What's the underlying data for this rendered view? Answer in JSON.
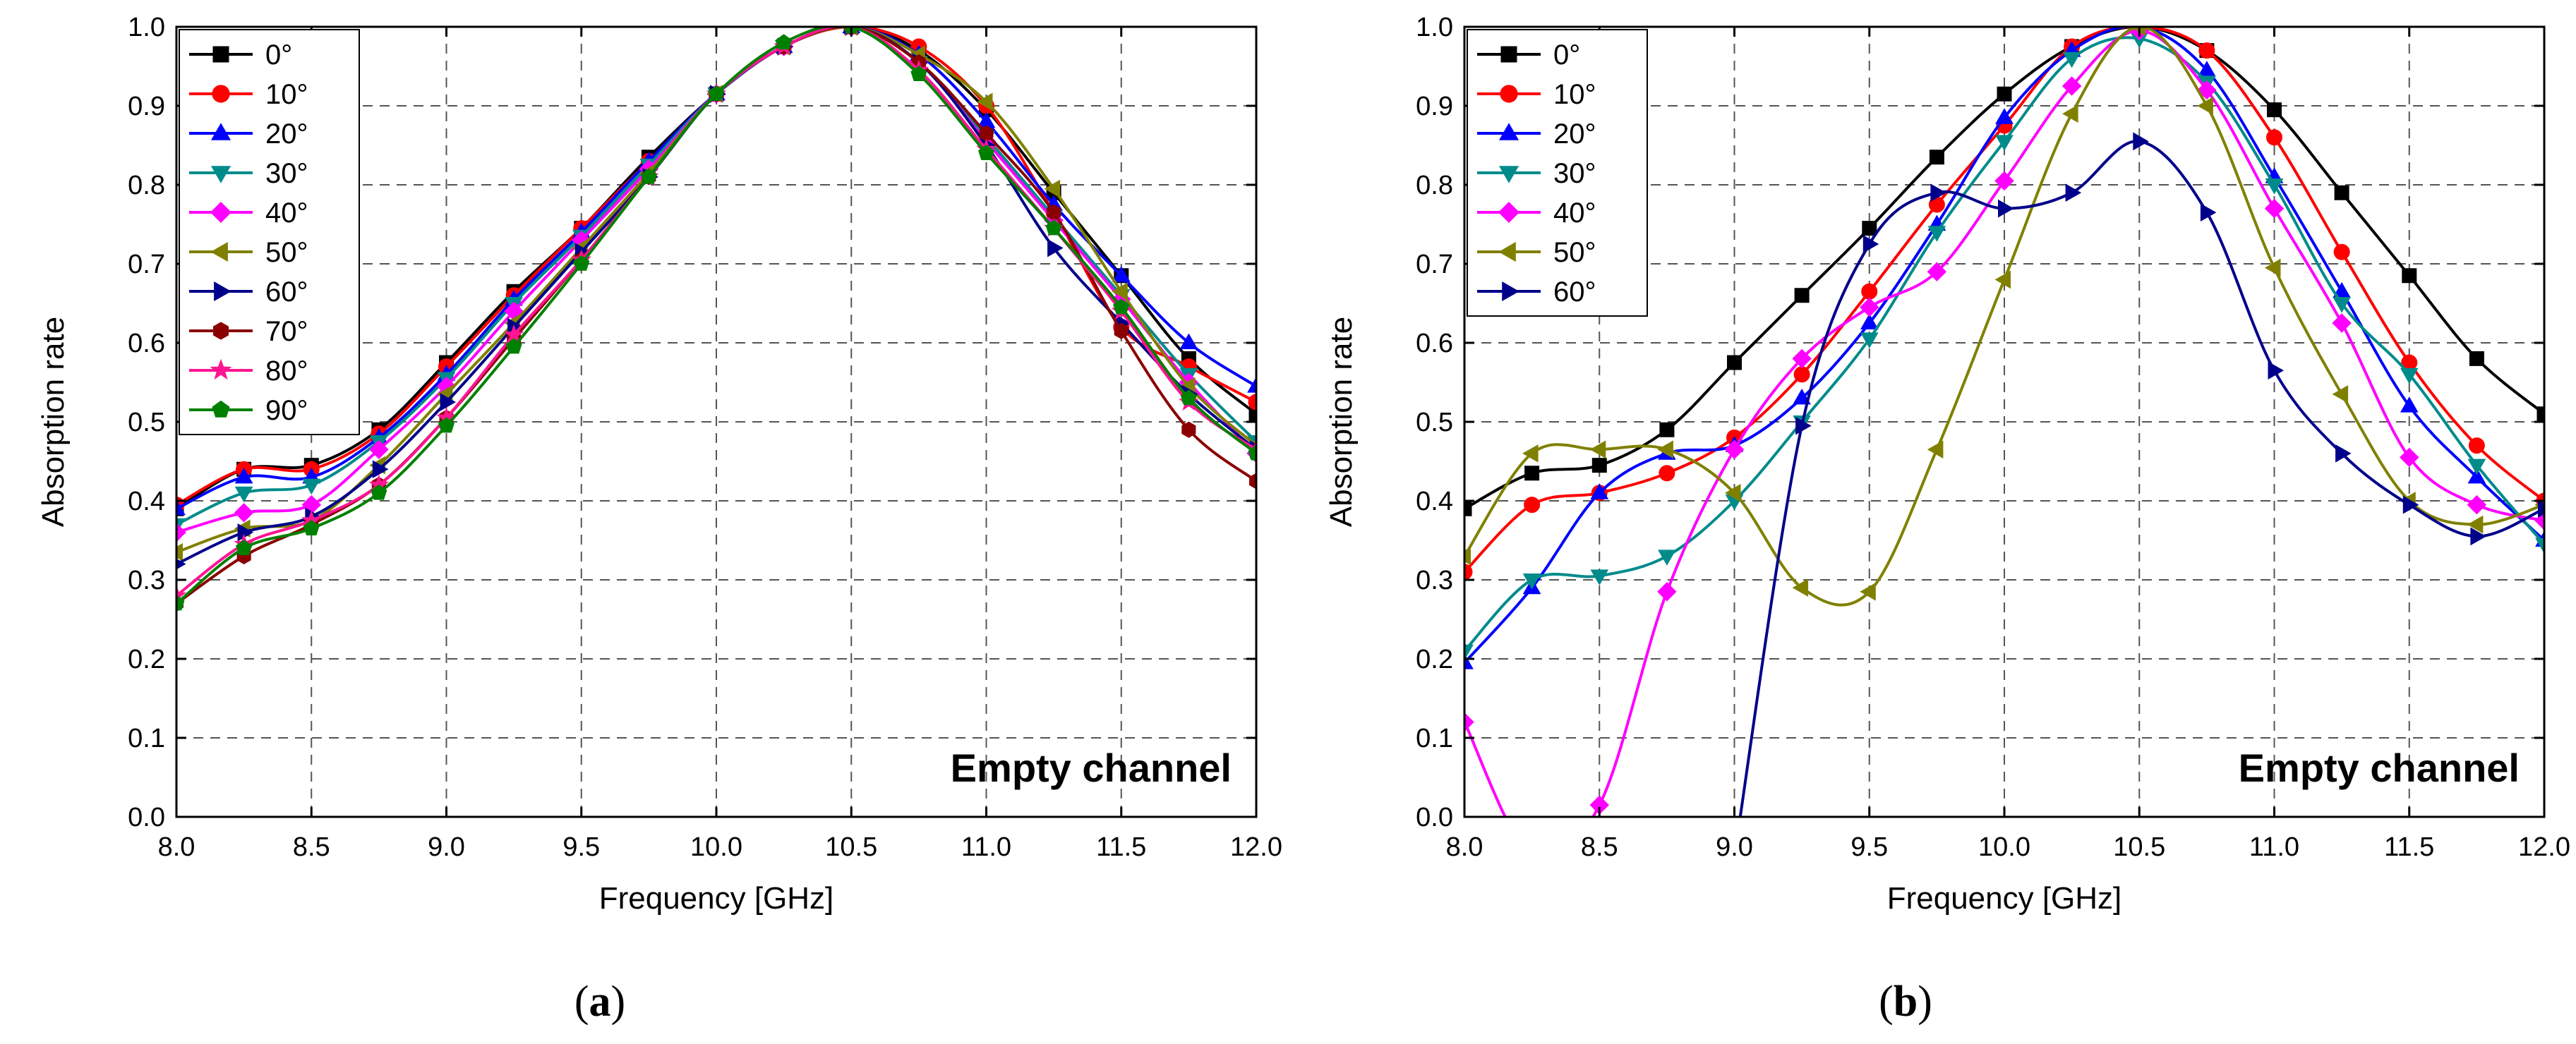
{
  "chart_data": [
    {
      "type": "line",
      "panel_label": "(a)",
      "xlabel": "Frequency [GHz]",
      "ylabel": "Absorption rate",
      "xlim": [
        8.0,
        12.0
      ],
      "ylim": [
        0.0,
        1.0
      ],
      "xticks": [
        "8.0",
        "8.5",
        "9.0",
        "9.5",
        "10.0",
        "10.5",
        "11.0",
        "11.5",
        "12.0"
      ],
      "yticks": [
        "0.0",
        "0.1",
        "0.2",
        "0.3",
        "0.4",
        "0.5",
        "0.6",
        "0.7",
        "0.8",
        "0.9",
        "1.0"
      ],
      "grid": true,
      "legend_position": "top-left",
      "annotation": "Empty channel",
      "x": [
        8.0,
        8.25,
        8.5,
        8.75,
        9.0,
        9.25,
        9.5,
        9.75,
        10.0,
        10.25,
        10.5,
        10.75,
        11.0,
        11.25,
        11.5,
        11.75,
        12.0
      ],
      "series": [
        {
          "name": "0°",
          "color": "#000000",
          "marker": "square",
          "values": [
            0.39,
            0.44,
            0.445,
            0.49,
            0.575,
            0.665,
            0.745,
            0.835,
            0.915,
            0.975,
            1.0,
            0.97,
            0.895,
            0.79,
            0.685,
            0.58,
            0.51
          ]
        },
        {
          "name": "10°",
          "color": "#ff0000",
          "marker": "circle",
          "values": [
            0.395,
            0.44,
            0.44,
            0.485,
            0.57,
            0.66,
            0.745,
            0.83,
            0.915,
            0.975,
            1.0,
            0.975,
            0.9,
            0.765,
            0.62,
            0.57,
            0.525
          ]
        },
        {
          "name": "20°",
          "color": "#0000ff",
          "marker": "triangle-up",
          "values": [
            0.39,
            0.43,
            0.43,
            0.48,
            0.56,
            0.655,
            0.74,
            0.83,
            0.915,
            0.975,
            1.0,
            0.965,
            0.88,
            0.775,
            0.685,
            0.6,
            0.545
          ]
        },
        {
          "name": "30°",
          "color": "#008b8b",
          "marker": "triangle-down",
          "values": [
            0.37,
            0.41,
            0.42,
            0.475,
            0.555,
            0.65,
            0.735,
            0.825,
            0.915,
            0.975,
            1.0,
            0.955,
            0.86,
            0.76,
            0.66,
            0.56,
            0.475
          ]
        },
        {
          "name": "40°",
          "color": "#ff00ff",
          "marker": "diamond",
          "values": [
            0.36,
            0.385,
            0.395,
            0.465,
            0.545,
            0.64,
            0.73,
            0.82,
            0.915,
            0.975,
            1.0,
            0.955,
            0.855,
            0.755,
            0.655,
            0.55,
            0.46
          ]
        },
        {
          "name": "50°",
          "color": "#808000",
          "marker": "triangle-left",
          "values": [
            0.335,
            0.365,
            0.375,
            0.445,
            0.535,
            0.625,
            0.72,
            0.815,
            0.915,
            0.975,
            1.0,
            0.965,
            0.905,
            0.795,
            0.665,
            0.545,
            0.47
          ]
        },
        {
          "name": "60°",
          "color": "#00008b",
          "marker": "triangle-right",
          "values": [
            0.32,
            0.36,
            0.38,
            0.44,
            0.525,
            0.62,
            0.715,
            0.81,
            0.915,
            0.975,
            1.0,
            0.955,
            0.85,
            0.72,
            0.625,
            0.535,
            0.465
          ]
        },
        {
          "name": "70°",
          "color": "#8b0000",
          "marker": "hexagon",
          "values": [
            0.27,
            0.33,
            0.37,
            0.42,
            0.505,
            0.605,
            0.705,
            0.81,
            0.915,
            0.975,
            1.0,
            0.955,
            0.865,
            0.765,
            0.615,
            0.49,
            0.425
          ]
        },
        {
          "name": "80°",
          "color": "#ff1493",
          "marker": "star",
          "values": [
            0.28,
            0.345,
            0.375,
            0.42,
            0.505,
            0.61,
            0.705,
            0.81,
            0.915,
            0.975,
            1.0,
            0.945,
            0.845,
            0.745,
            0.64,
            0.525,
            0.465
          ]
        },
        {
          "name": "90°",
          "color": "#008000",
          "marker": "pentagon",
          "values": [
            0.27,
            0.34,
            0.365,
            0.41,
            0.495,
            0.595,
            0.7,
            0.81,
            0.915,
            0.98,
            1.0,
            0.94,
            0.84,
            0.745,
            0.645,
            0.53,
            0.46
          ]
        }
      ]
    },
    {
      "type": "line",
      "panel_label": "(b)",
      "xlabel": "Frequency [GHz]",
      "ylabel": "Absorption rate",
      "xlim": [
        8.0,
        12.0
      ],
      "ylim": [
        0.0,
        1.0
      ],
      "xticks": [
        "8.0",
        "8.5",
        "9.0",
        "9.5",
        "10.0",
        "10.5",
        "11.0",
        "11.5",
        "12.0"
      ],
      "yticks": [
        "0.0",
        "0.1",
        "0.2",
        "0.3",
        "0.4",
        "0.5",
        "0.6",
        "0.7",
        "0.8",
        "0.9",
        "1.0"
      ],
      "grid": true,
      "legend_position": "top-left",
      "annotation": "Empty channel",
      "x": [
        8.0,
        8.25,
        8.5,
        8.75,
        9.0,
        9.25,
        9.5,
        9.75,
        10.0,
        10.25,
        10.5,
        10.75,
        11.0,
        11.25,
        11.5,
        11.75,
        12.0
      ],
      "series": [
        {
          "name": "0°",
          "color": "#000000",
          "marker": "square",
          "values": [
            0.39,
            0.435,
            0.445,
            0.49,
            0.575,
            0.66,
            0.745,
            0.835,
            0.915,
            0.975,
            1.0,
            0.97,
            0.895,
            0.79,
            0.685,
            0.58,
            0.51
          ]
        },
        {
          "name": "10°",
          "color": "#ff0000",
          "marker": "circle",
          "values": [
            0.31,
            0.395,
            0.41,
            0.435,
            0.48,
            0.56,
            0.665,
            0.775,
            0.875,
            0.975,
            1.0,
            0.97,
            0.86,
            0.715,
            0.575,
            0.47,
            0.4
          ]
        },
        {
          "name": "20°",
          "color": "#0000ff",
          "marker": "triangle-up",
          "values": [
            0.195,
            0.29,
            0.41,
            0.46,
            0.47,
            0.53,
            0.625,
            0.75,
            0.885,
            0.97,
            1.0,
            0.945,
            0.81,
            0.665,
            0.52,
            0.43,
            0.35
          ]
        },
        {
          "name": "30°",
          "color": "#008b8b",
          "marker": "triangle-down",
          "values": [
            0.21,
            0.3,
            0.305,
            0.33,
            0.4,
            0.5,
            0.605,
            0.74,
            0.855,
            0.96,
            0.985,
            0.93,
            0.8,
            0.65,
            0.56,
            0.445,
            0.345
          ]
        },
        {
          "name": "40°",
          "color": "#ff00ff",
          "marker": "diamond",
          "values": [
            0.12,
            -0.05,
            0.015,
            0.285,
            0.465,
            0.58,
            0.645,
            0.69,
            0.805,
            0.925,
            0.995,
            0.92,
            0.77,
            0.625,
            0.455,
            0.395,
            0.375
          ]
        },
        {
          "name": "50°",
          "color": "#808000",
          "marker": "triangle-left",
          "values": [
            0.33,
            0.46,
            0.465,
            0.465,
            0.41,
            0.29,
            0.285,
            0.465,
            0.68,
            0.89,
            1.0,
            0.9,
            0.695,
            0.535,
            0.4,
            0.37,
            0.395
          ]
        },
        {
          "name": "60°",
          "color": "#00008b",
          "marker": "triangle-right",
          "values": [
            null,
            null,
            null,
            null,
            -0.05,
            0.495,
            0.725,
            0.79,
            0.77,
            0.79,
            0.855,
            0.765,
            0.565,
            0.46,
            0.395,
            0.355,
            0.39
          ]
        }
      ]
    }
  ]
}
